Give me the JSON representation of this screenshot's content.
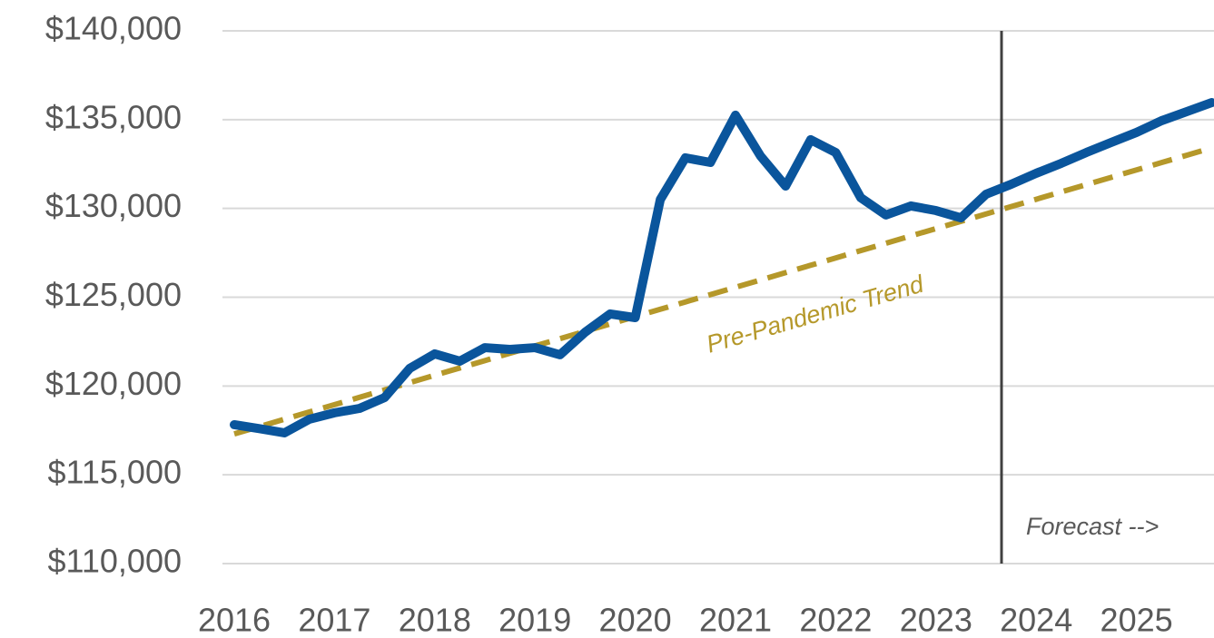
{
  "chart_data": {
    "type": "line",
    "categories": [
      "2016",
      null,
      null,
      null,
      "2017",
      null,
      null,
      null,
      "2018",
      null,
      null,
      null,
      "2019",
      null,
      null,
      null,
      "2020",
      null,
      null,
      null,
      "2021",
      null,
      null,
      null,
      "2022",
      null,
      null,
      null,
      "2023",
      null,
      null,
      null,
      "2024",
      null,
      null,
      null,
      "2025",
      null,
      null,
      null
    ],
    "series": [
      {
        "color": "#0a559c",
        "values": [
          117820,
          117600,
          117360,
          118130,
          118490,
          118740,
          119350,
          120990,
          121810,
          121400,
          122160,
          122060,
          122160,
          121760,
          123030,
          124060,
          123850,
          130500,
          132850,
          132590,
          135250,
          132950,
          131260,
          133870,
          133150,
          130600,
          129630,
          130140,
          129880,
          129470,
          130800,
          131360,
          131980,
          132540,
          133150,
          133720,
          134280,
          134940,
          135450,
          135960
        ]
      },
      {
        "name": "Pre-Pandemic Trend",
        "color": "#b5982a",
        "dashed": true,
        "values": [
          117300,
          117713,
          118126,
          118539,
          118952,
          119365,
          119778,
          120191,
          120604,
          121017,
          121430,
          121843,
          122256,
          122669,
          123082,
          123495,
          123908,
          124321,
          124734,
          125147,
          125560,
          125973,
          126386,
          126799,
          127212,
          127625,
          128038,
          128451,
          128864,
          129277,
          129690,
          130103,
          130516,
          130929,
          131342,
          131755,
          132168,
          132581,
          132994,
          133407
        ]
      }
    ],
    "annotation": "Forecast -->",
    "ylim": [
      110000,
      140000
    ],
    "yticks": [
      {
        "value": 110000,
        "label": "$110,000"
      },
      {
        "value": 115000,
        "label": "$115,000"
      },
      {
        "value": 120000,
        "label": "$120,000"
      },
      {
        "value": 125000,
        "label": "$125,000"
      },
      {
        "value": 130000,
        "label": "$130,000"
      },
      {
        "value": 135000,
        "label": "$135,000"
      },
      {
        "value": 140000,
        "label": "$140,000"
      }
    ],
    "grid": true
  }
}
